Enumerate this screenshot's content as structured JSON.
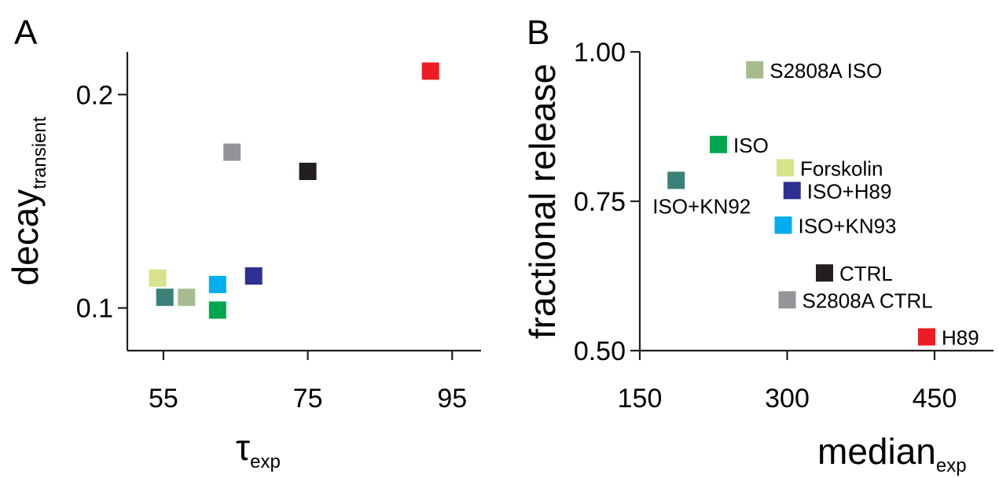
{
  "chart_data": [
    {
      "panel_letter": "A",
      "type": "scatter",
      "xlabel": "τ",
      "xlabel_subscript": "exp",
      "ylabel": "decay",
      "ylabel_subscript": "transient",
      "xlim": [
        50,
        99
      ],
      "ylim": [
        0.08,
        0.22
      ],
      "x_ticks": [
        55,
        75,
        95
      ],
      "x_tick_labels": [
        "55",
        "75",
        "95"
      ],
      "y_ticks": [
        0.1,
        0.2
      ],
      "y_tick_labels": [
        "0.1",
        "0.2"
      ],
      "grid": false,
      "points": [
        {
          "x": 92,
          "y": 0.211,
          "color": "#ed1c24"
        },
        {
          "x": 64.5,
          "y": 0.173,
          "color": "#939598"
        },
        {
          "x": 75,
          "y": 0.164,
          "color": "#231f20"
        },
        {
          "x": 54.2,
          "y": 0.114,
          "color": "#d7e28a"
        },
        {
          "x": 62.5,
          "y": 0.111,
          "color": "#00aeef"
        },
        {
          "x": 67.5,
          "y": 0.115,
          "color": "#2e3192"
        },
        {
          "x": 55.2,
          "y": 0.105,
          "color": "#3a8078"
        },
        {
          "x": 58.2,
          "y": 0.105,
          "color": "#a8bb90"
        },
        {
          "x": 62.5,
          "y": 0.099,
          "color": "#00a650"
        }
      ]
    },
    {
      "panel_letter": "B",
      "type": "scatter",
      "xlabel": "median",
      "xlabel_subscript": "exp",
      "ylabel": "fractional release",
      "xlim": [
        150,
        510
      ],
      "ylim": [
        0.5,
        1.0
      ],
      "x_ticks": [
        150,
        300,
        450
      ],
      "x_tick_labels": [
        "150",
        "300",
        "450"
      ],
      "y_ticks": [
        0.5,
        0.75,
        1.0
      ],
      "y_tick_labels": [
        "0.50",
        "0.75",
        "1.00"
      ],
      "grid": false,
      "points": [
        {
          "x": 267,
          "y": 0.97,
          "label": "S2808A ISO",
          "label_side": "right",
          "color": "#a8bb90"
        },
        {
          "x": 230,
          "y": 0.845,
          "label": "ISO",
          "label_side": "right",
          "color": "#00a650"
        },
        {
          "x": 298,
          "y": 0.806,
          "label": "Forskolin",
          "label_side": "right",
          "color": "#d7e28a"
        },
        {
          "x": 187,
          "y": 0.785,
          "label": "ISO+KN92",
          "label_side": "below",
          "color": "#3a8078"
        },
        {
          "x": 305,
          "y": 0.768,
          "label": "ISO+H89",
          "label_side": "right",
          "color": "#2e3192"
        },
        {
          "x": 296,
          "y": 0.71,
          "label": "ISO+KN93",
          "label_side": "right",
          "color": "#00aeef"
        },
        {
          "x": 338,
          "y": 0.63,
          "label": "CTRL",
          "label_side": "right",
          "color": "#231f20"
        },
        {
          "x": 300,
          "y": 0.585,
          "label": "S2808A CTRL",
          "label_side": "right",
          "color": "#939598"
        },
        {
          "x": 442,
          "y": 0.523,
          "label": "H89",
          "label_side": "right",
          "color": "#ed1c24"
        }
      ]
    }
  ]
}
